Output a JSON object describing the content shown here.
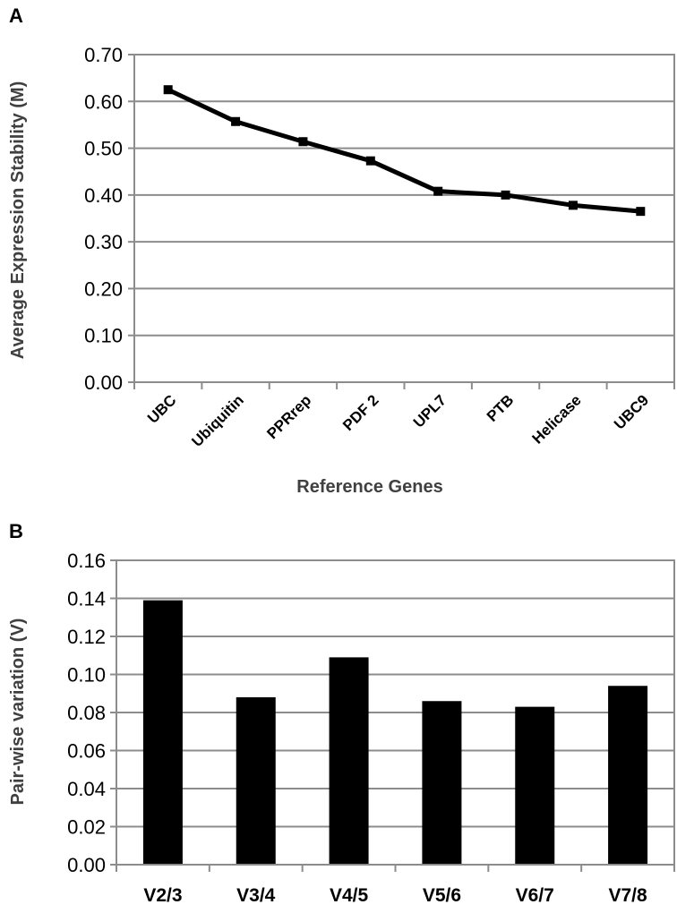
{
  "figure": {
    "panel_a_letter": "A",
    "panel_b_letter": "B"
  },
  "chart_data": [
    {
      "type": "line",
      "title": "",
      "xlabel": "Reference Genes",
      "ylabel": "Average Expression Stability (M)",
      "categories": [
        "UBC",
        "Ubiquitin",
        "PPRrep",
        "PDF 2",
        "UPL7",
        "PTB",
        "Helicase",
        "UBC9"
      ],
      "values": [
        0.625,
        0.557,
        0.514,
        0.473,
        0.408,
        0.4,
        0.378,
        0.365
      ],
      "yticks": [
        "0.00",
        "0.10",
        "0.20",
        "0.30",
        "0.40",
        "0.50",
        "0.60",
        "0.70"
      ],
      "ylim": [
        0,
        0.7
      ],
      "grid": true,
      "line_color": "#000000",
      "marker": "square"
    },
    {
      "type": "bar",
      "title": "",
      "xlabel": "",
      "ylabel": "Pair-wise variation (V)",
      "categories": [
        "V2/3",
        "V3/4",
        "V4/5",
        "V5/6",
        "V6/7",
        "V7/8"
      ],
      "values": [
        0.139,
        0.088,
        0.109,
        0.086,
        0.083,
        0.094
      ],
      "yticks": [
        "0.00",
        "0.02",
        "0.04",
        "0.06",
        "0.08",
        "0.10",
        "0.12",
        "0.14",
        "0.16"
      ],
      "ylim": [
        0,
        0.16
      ],
      "grid": true,
      "bar_color": "#000000"
    }
  ]
}
